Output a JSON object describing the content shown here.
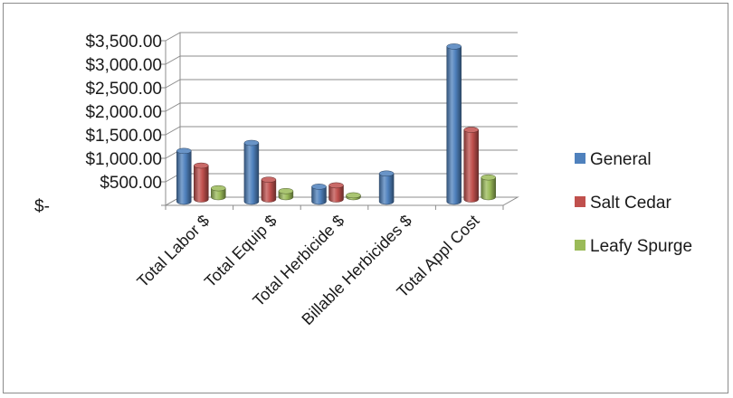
{
  "chart_data": {
    "type": "bar",
    "title": "",
    "xlabel": "",
    "ylabel": "",
    "categories": [
      "Total Labor $",
      "Total Equip $",
      "Total Herbicide $",
      "Billable Herbicides $",
      "Total Appl Cost"
    ],
    "series": [
      {
        "name": "General",
        "color": "#4f81bd",
        "values": [
          1080,
          1250,
          320,
          600,
          3300
        ]
      },
      {
        "name": "Salt Cedar",
        "color": "#c0504d",
        "values": [
          720,
          420,
          300,
          0,
          1480
        ]
      },
      {
        "name": "Leafy Spurge",
        "color": "#9bbb59",
        "values": [
          190,
          130,
          40,
          0,
          420
        ]
      }
    ],
    "ylim": [
      0,
      3500
    ],
    "yticks": [
      0,
      500,
      1000,
      1500,
      2000,
      2500,
      3000,
      3500
    ],
    "ytick_labels": [
      "$-",
      "$500.00",
      "$1,000.00",
      "$1,500.00",
      "$2,000.00",
      "$2,500.00",
      "$3,000.00",
      "$3,500.00"
    ],
    "grid": true,
    "legend_position": "right",
    "style": "3d-clustered-cylinder"
  }
}
